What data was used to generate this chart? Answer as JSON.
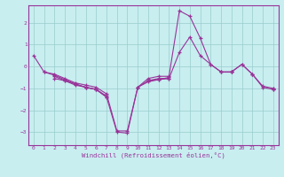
{
  "xlabel": "Windchill (Refroidissement éolien,°C)",
  "background_color": "#c8eef0",
  "grid_color": "#99cccc",
  "line_color": "#993399",
  "xlim": [
    -0.5,
    23.5
  ],
  "ylim": [
    -3.6,
    2.8
  ],
  "xticks": [
    0,
    1,
    2,
    3,
    4,
    5,
    6,
    7,
    8,
    9,
    10,
    11,
    12,
    13,
    14,
    15,
    16,
    17,
    18,
    19,
    20,
    21,
    22,
    23
  ],
  "yticks": [
    -3,
    -2,
    -1,
    0,
    1,
    2
  ],
  "series": [
    {
      "x": [
        0,
        1,
        2,
        3,
        4,
        5,
        6,
        7,
        8,
        9,
        10,
        11,
        12,
        13,
        14,
        15,
        16,
        17,
        18,
        19,
        20,
        21,
        22,
        23
      ],
      "y": [
        0.5,
        -0.25,
        -0.35,
        -0.55,
        -0.75,
        -0.85,
        -0.95,
        -1.25,
        -2.95,
        -2.95,
        -0.95,
        -0.55,
        -0.45,
        -0.45,
        2.55,
        2.3,
        1.3,
        0.1,
        -0.25,
        -0.25,
        0.1,
        -0.35,
        -0.9,
        -1.0
      ]
    },
    {
      "x": [
        1,
        2,
        3,
        4,
        5,
        6,
        7
      ],
      "y": [
        -0.25,
        -0.4,
        -0.6,
        -0.8,
        -0.95,
        -1.05,
        -1.35
      ]
    },
    {
      "x": [
        10,
        11,
        12,
        13
      ],
      "y": [
        -0.95,
        -0.7,
        -0.6,
        -0.5
      ]
    },
    {
      "x": [
        18,
        19
      ],
      "y": [
        -0.25,
        -0.25
      ]
    },
    {
      "x": [
        21
      ],
      "y": [
        -0.35
      ]
    },
    {
      "x": [
        23
      ],
      "y": [
        -1.0
      ]
    },
    {
      "x": [
        2,
        3,
        4,
        5,
        6,
        7,
        8,
        9,
        10,
        11,
        12,
        13,
        14,
        15,
        16,
        17,
        18,
        19,
        20,
        21,
        22,
        23
      ],
      "y": [
        -0.55,
        -0.65,
        -0.8,
        -0.95,
        -1.05,
        -1.4,
        -3.0,
        -3.05,
        -0.95,
        -0.65,
        -0.55,
        -0.55,
        0.65,
        1.35,
        0.5,
        0.1,
        -0.25,
        -0.25,
        0.1,
        -0.35,
        -0.95,
        -1.05
      ]
    },
    {
      "x": [
        2,
        3,
        4,
        5,
        6,
        7
      ],
      "y": [
        -0.45,
        -0.65,
        -0.85,
        -0.95,
        -1.05,
        -1.4
      ]
    },
    {
      "x": [
        11,
        12,
        13
      ],
      "y": [
        -0.65,
        -0.6,
        -0.55
      ]
    },
    {
      "x": [
        19
      ],
      "y": [
        -0.25
      ]
    },
    {
      "x": [
        23
      ],
      "y": [
        -1.05
      ]
    }
  ]
}
